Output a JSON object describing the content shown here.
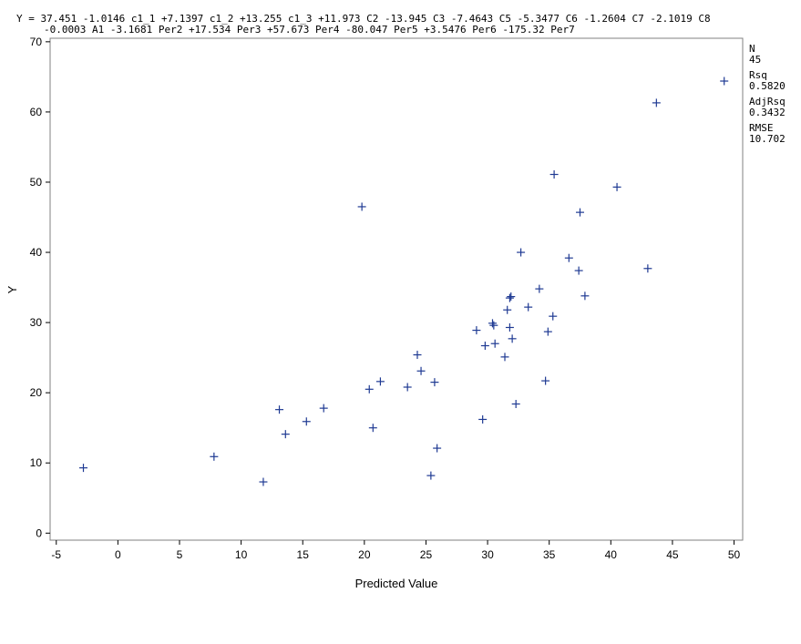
{
  "chart_data": {
    "type": "scatter",
    "equation": {
      "line1": "Y = 37.451 -1.0146 c1_1 +7.1397 c1_2 +13.255 c1_3 +11.973 C2 -13.945 C3 -7.4643 C5 -5.3477 C6 -1.2604 C7 -2.1019 C8",
      "line2": "-0.0003 A1 -3.1681 Per2 +17.534 Per3 +57.673 Per4 -80.047 Per5 +3.5476 Per6 -175.32 Per7"
    },
    "stats": [
      {
        "label": "N",
        "value": "45"
      },
      {
        "label": "Rsq",
        "value": "0.5820"
      },
      {
        "label": "AdjRsq",
        "value": "0.3432"
      },
      {
        "label": "RMSE",
        "value": "10.702"
      }
    ],
    "xlabel": "Predicted Value",
    "ylabel": "Y",
    "xlim": [
      -5.5,
      50.7
    ],
    "ylim": [
      -1,
      70.5
    ],
    "xticks": [
      -5,
      0,
      5,
      10,
      15,
      20,
      25,
      30,
      35,
      40,
      45,
      50
    ],
    "yticks": [
      0,
      10,
      20,
      30,
      40,
      50,
      60,
      70
    ],
    "marker": "+",
    "marker_color": "#1f3a93",
    "points": [
      {
        "x": -2.8,
        "y": 9.3
      },
      {
        "x": 7.8,
        "y": 10.9
      },
      {
        "x": 11.8,
        "y": 7.3
      },
      {
        "x": 13.1,
        "y": 17.6
      },
      {
        "x": 13.6,
        "y": 14.1
      },
      {
        "x": 15.3,
        "y": 15.9
      },
      {
        "x": 16.7,
        "y": 17.8
      },
      {
        "x": 19.8,
        "y": 46.5
      },
      {
        "x": 20.4,
        "y": 20.5
      },
      {
        "x": 20.7,
        "y": 15.0
      },
      {
        "x": 21.3,
        "y": 21.6
      },
      {
        "x": 23.5,
        "y": 20.8
      },
      {
        "x": 24.3,
        "y": 25.4
      },
      {
        "x": 24.6,
        "y": 23.1
      },
      {
        "x": 25.4,
        "y": 8.2
      },
      {
        "x": 25.7,
        "y": 21.5
      },
      {
        "x": 25.9,
        "y": 12.1
      },
      {
        "x": 29.1,
        "y": 28.9
      },
      {
        "x": 29.6,
        "y": 16.2
      },
      {
        "x": 29.8,
        "y": 26.7
      },
      {
        "x": 30.4,
        "y": 29.9
      },
      {
        "x": 30.5,
        "y": 29.6
      },
      {
        "x": 30.6,
        "y": 27.0
      },
      {
        "x": 31.4,
        "y": 25.1
      },
      {
        "x": 31.6,
        "y": 31.8
      },
      {
        "x": 31.8,
        "y": 33.5
      },
      {
        "x": 31.9,
        "y": 33.7
      },
      {
        "x": 31.8,
        "y": 29.3
      },
      {
        "x": 32.0,
        "y": 27.7
      },
      {
        "x": 32.3,
        "y": 18.4
      },
      {
        "x": 32.7,
        "y": 40.0
      },
      {
        "x": 33.3,
        "y": 32.2
      },
      {
        "x": 34.2,
        "y": 34.8
      },
      {
        "x": 34.7,
        "y": 21.7
      },
      {
        "x": 34.9,
        "y": 28.7
      },
      {
        "x": 35.3,
        "y": 30.9
      },
      {
        "x": 35.4,
        "y": 51.1
      },
      {
        "x": 36.6,
        "y": 39.2
      },
      {
        "x": 37.4,
        "y": 37.4
      },
      {
        "x": 37.5,
        "y": 45.7
      },
      {
        "x": 37.9,
        "y": 33.8
      },
      {
        "x": 40.5,
        "y": 49.3
      },
      {
        "x": 43.0,
        "y": 37.7
      },
      {
        "x": 43.7,
        "y": 61.3
      },
      {
        "x": 49.2,
        "y": 64.4
      }
    ]
  }
}
